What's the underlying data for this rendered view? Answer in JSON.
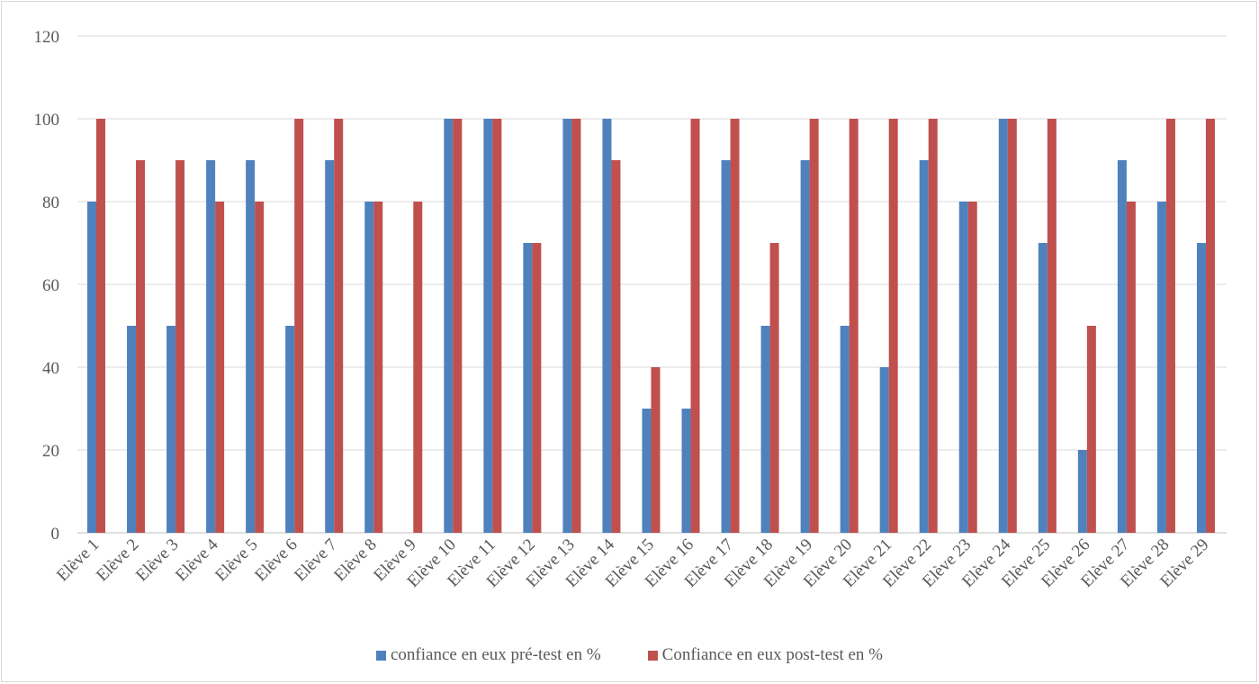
{
  "chart_data": {
    "type": "bar",
    "categories": [
      "Elève 1",
      "Elève 2",
      "Elève 3",
      "Elève 4",
      "Elève 5",
      "Elève 6",
      "Elève 7",
      "Elève 8",
      "Elève 9",
      "Elève 10",
      "Elève 11",
      "Elève 12",
      "Elève 13",
      "Elève 14",
      "Elève 15",
      "Elève 16",
      "Elève 17",
      "Elève 18",
      "Elève 19",
      "Elève 20",
      "Elève 21",
      "Elève 22",
      "Elève 23",
      "Elève 24",
      "Elève 25",
      "Elève 26",
      "Elève 27",
      "Elève 28",
      "Elève 29"
    ],
    "series": [
      {
        "name": "confiance en eux pré-test en %",
        "color": "#4f81bd",
        "values": [
          80,
          50,
          50,
          90,
          90,
          50,
          90,
          80,
          0,
          100,
          100,
          70,
          100,
          100,
          30,
          30,
          90,
          50,
          90,
          50,
          40,
          90,
          80,
          100,
          70,
          20,
          90,
          80,
          70
        ]
      },
      {
        "name": "Confiance en eux post-test en %",
        "color": "#c0504d",
        "values": [
          100,
          90,
          90,
          80,
          80,
          100,
          100,
          80,
          80,
          100,
          100,
          70,
          100,
          90,
          40,
          100,
          100,
          70,
          100,
          100,
          100,
          100,
          80,
          100,
          100,
          50,
          80,
          100,
          100
        ]
      }
    ],
    "ylim": [
      0,
      120
    ],
    "yticks": [
      0,
      20,
      40,
      60,
      80,
      100,
      120
    ],
    "grid": true,
    "legend_position": "bottom"
  }
}
